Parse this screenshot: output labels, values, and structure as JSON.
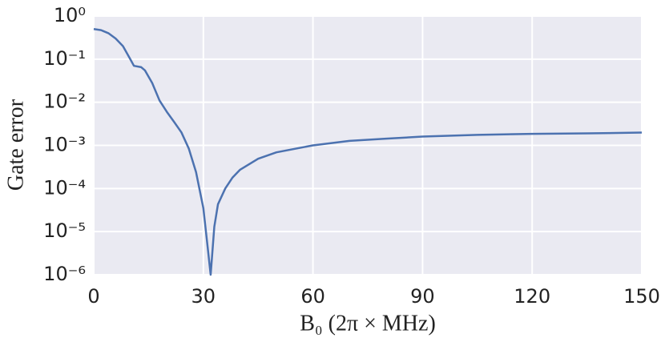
{
  "chart_data": {
    "type": "line",
    "xlabel": "B₀ (2π × MHz)",
    "ylabel": "Gate error",
    "x": [
      0,
      2,
      4,
      6,
      8,
      10,
      11,
      13,
      14,
      16,
      18,
      20,
      22,
      24,
      26,
      28,
      30,
      31,
      32,
      33,
      34,
      36,
      38,
      40,
      45,
      50,
      60,
      70,
      80,
      90,
      105,
      120,
      135,
      150
    ],
    "series": [
      {
        "name": "Gate error",
        "color": "#4c72b0",
        "values": [
          0.5,
          0.47,
          0.4,
          0.3,
          0.2,
          0.1,
          0.07,
          0.065,
          0.055,
          0.028,
          0.011,
          0.006,
          0.0035,
          0.002,
          0.00085,
          0.00024,
          3.5e-05,
          6e-06,
          1e-06,
          1.3e-05,
          4.3e-05,
          0.0001,
          0.00018,
          0.00027,
          0.00049,
          0.00069,
          0.001,
          0.00127,
          0.00143,
          0.0016,
          0.00175,
          0.00185,
          0.0019,
          0.00198
        ]
      }
    ],
    "xlim": [
      0,
      150
    ],
    "xticks": [
      0,
      30,
      60,
      90,
      120,
      150
    ],
    "ylim": [
      1e-06,
      1
    ],
    "yscale": "log",
    "yticks": [
      {
        "value": 1e-06,
        "label": "10⁻⁶"
      },
      {
        "value": 1e-05,
        "label": "10⁻⁵"
      },
      {
        "value": 0.0001,
        "label": "10⁻⁴"
      },
      {
        "value": 0.001,
        "label": "10⁻³"
      },
      {
        "value": 0.01,
        "label": "10⁻²"
      },
      {
        "value": 0.1,
        "label": "10⁻¹"
      },
      {
        "value": 1,
        "label": "10⁰"
      }
    ],
    "grid": true,
    "background": "#eaeaf2"
  }
}
